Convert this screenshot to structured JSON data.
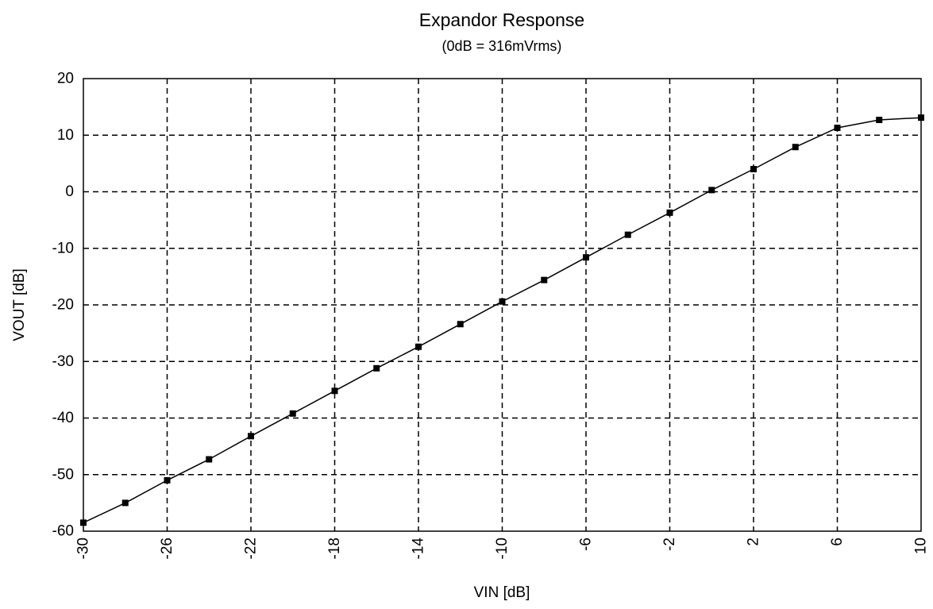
{
  "chart_data": {
    "type": "line",
    "title": "Expandor Response",
    "subtitle": "(0dB = 316mVrms)",
    "xlabel": "VIN [dB]",
    "ylabel": "VOUT [dB]",
    "xlim": [
      -30,
      10
    ],
    "ylim": [
      -60,
      20
    ],
    "x_ticks": [
      -30,
      -26,
      -22,
      -18,
      -14,
      -10,
      -6,
      -2,
      2,
      6,
      10
    ],
    "y_ticks": [
      20,
      10,
      0,
      -10,
      -20,
      -30,
      -40,
      -50,
      -60
    ],
    "x_tick_labels": [
      "-30",
      "-26",
      "-22",
      "-18",
      "-14",
      "-10",
      "-6",
      "-2",
      "2",
      "6",
      "10"
    ],
    "y_tick_labels": [
      "20",
      "10",
      "0",
      "-10",
      "-20",
      "-30",
      "-40",
      "-50",
      "-60"
    ],
    "grid": true,
    "legend": "none",
    "series": [
      {
        "marker": "square",
        "color": "#000000",
        "x": [
          -30,
          -28,
          -26,
          -24,
          -22,
          -20,
          -18,
          -16,
          -14,
          -12,
          -10,
          -8,
          -6,
          -4,
          -2,
          0,
          2,
          4,
          6,
          8,
          10
        ],
        "y": [
          -58.5,
          -55,
          -51,
          -47.3,
          -43.2,
          -39.2,
          -35.2,
          -31.2,
          -27.4,
          -23.4,
          -19.4,
          -15.6,
          -11.6,
          -7.6,
          -3.7,
          0.3,
          4,
          7.9,
          11.3,
          12.7,
          13.1
        ]
      }
    ]
  }
}
